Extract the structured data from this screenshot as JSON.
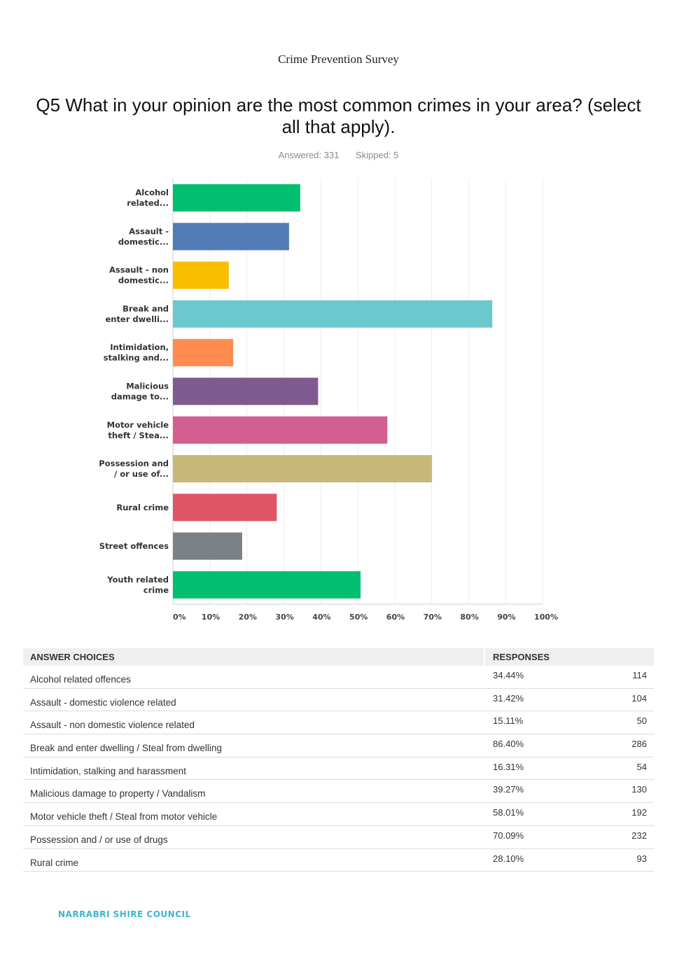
{
  "header": {
    "doc_title": "Crime Prevention Survey",
    "question": "Q5 What in your opinion are the most common crimes in your area? (select all that apply).",
    "answered": "Answered: 331",
    "skipped": "Skipped: 5"
  },
  "chart_data": {
    "type": "bar",
    "orientation": "horizontal",
    "categories": [
      [
        "Alcohol",
        "related..."
      ],
      [
        "Assault -",
        "domestic..."
      ],
      [
        "Assault - non",
        "domestic..."
      ],
      [
        "Break and",
        "enter dwelli..."
      ],
      [
        "Intimidation,",
        "stalking and..."
      ],
      [
        "Malicious",
        "damage to..."
      ],
      [
        "Motor vehicle",
        "theft / Stea..."
      ],
      [
        "Possession and",
        "/ or use of..."
      ],
      [
        "Rural crime"
      ],
      [
        "Street offences"
      ],
      [
        "Youth related",
        "crime"
      ]
    ],
    "values": [
      34.44,
      31.42,
      15.11,
      86.4,
      16.31,
      39.27,
      58.01,
      70.09,
      28.1,
      18.73,
      50.76
    ],
    "colors": [
      "#00bf6f",
      "#507cb6",
      "#f9be00",
      "#6bc8cd",
      "#ff8b4f",
      "#7f5a8f",
      "#d25f90",
      "#c7b879",
      "#e05566",
      "#7a8288",
      "#00bf6f"
    ],
    "xlim": [
      0,
      100
    ],
    "xticks": [
      0,
      10,
      20,
      30,
      40,
      50,
      60,
      70,
      80,
      90,
      100
    ],
    "xtick_labels": [
      "0%",
      "10%",
      "20%",
      "30%",
      "40%",
      "50%",
      "60%",
      "70%",
      "80%",
      "90%",
      "100%"
    ],
    "grid": true
  },
  "table": {
    "header_choice": "ANSWER CHOICES",
    "header_responses": "RESPONSES",
    "rows": [
      {
        "choice": "Alcohol related offences",
        "percent": "34.44%",
        "count": "114"
      },
      {
        "choice": "Assault - domestic violence related",
        "percent": "31.42%",
        "count": "104"
      },
      {
        "choice": "Assault - non domestic violence related",
        "percent": "15.11%",
        "count": "50"
      },
      {
        "choice": "Break and enter dwelling / Steal from dwelling",
        "percent": "86.40%",
        "count": "286"
      },
      {
        "choice": "Intimidation, stalking and harassment",
        "percent": "16.31%",
        "count": "54"
      },
      {
        "choice": "Malicious damage to property / Vandalism",
        "percent": "39.27%",
        "count": "130"
      },
      {
        "choice": "Motor vehicle theft / Steal from motor vehicle",
        "percent": "58.01%",
        "count": "192"
      },
      {
        "choice": "Possession and / or use of drugs",
        "percent": "70.09%",
        "count": "232"
      },
      {
        "choice": "Rural crime",
        "percent": "28.10%",
        "count": "93"
      }
    ]
  },
  "footer": {
    "org": "NARRABRI SHIRE COUNCIL"
  }
}
